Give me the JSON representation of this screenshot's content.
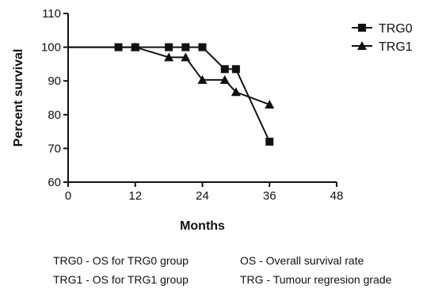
{
  "chart_data": {
    "type": "line",
    "xlabel": "Months",
    "ylabel": "Percent survival",
    "xlim": [
      0,
      48
    ],
    "ylim": [
      60,
      110
    ],
    "xticks": [
      0,
      12,
      24,
      36,
      48
    ],
    "yticks": [
      60,
      70,
      80,
      90,
      100,
      110
    ],
    "grid": false,
    "legend_position": "top-right",
    "series": [
      {
        "name": "TRG0",
        "marker": "square",
        "color": "#111111",
        "x": [
          0,
          9,
          12,
          18,
          21,
          24,
          28,
          30,
          36
        ],
        "y": [
          100,
          100,
          100,
          100,
          100,
          100,
          93.5,
          93.5,
          72
        ]
      },
      {
        "name": "TRG1",
        "marker": "triangle",
        "color": "#111111",
        "x": [
          0,
          12,
          18,
          21,
          24,
          28,
          30,
          36
        ],
        "y": [
          100,
          100,
          97,
          97,
          90.3,
          90.3,
          86.7,
          83
        ]
      }
    ]
  },
  "notes": {
    "left_line1": "TRG0 - OS for TRG0 group",
    "left_line2": "TRG1 - OS for TRG1 group",
    "right_line1": "OS - Overall survival rate",
    "right_line2": "TRG - Tumour regresion grade"
  }
}
